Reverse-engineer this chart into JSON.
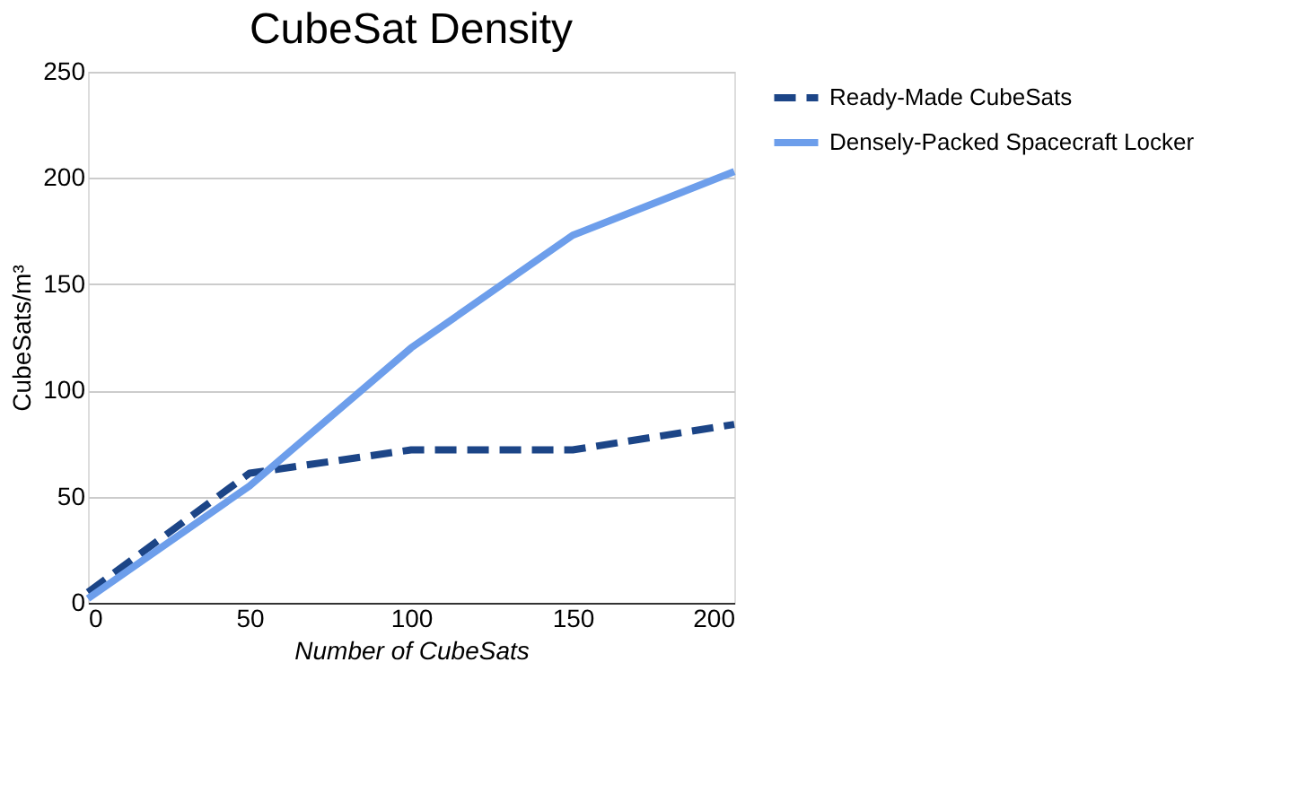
{
  "chart_data": {
    "type": "line",
    "title": "CubeSat Density",
    "xlabel": "Number of CubeSats",
    "ylabel": "CubeSats/m³",
    "x": [
      0,
      50,
      100,
      150,
      200
    ],
    "series": [
      {
        "name": "Ready-Made CubeSats",
        "color": "#1c4587",
        "line_style": "dashed",
        "values": [
          5,
          61,
          72,
          72,
          84
        ]
      },
      {
        "name": "Densely-Packed Spacecraft Locker",
        "color": "#6d9eeb",
        "line_style": "solid",
        "values": [
          2,
          55,
          120,
          173,
          203
        ]
      }
    ],
    "xlim": [
      0,
      200
    ],
    "xticks": [
      0,
      50,
      100,
      150,
      200
    ],
    "ylim": [
      0,
      250
    ],
    "yticks": [
      0,
      50,
      100,
      150,
      200,
      250
    ],
    "grid": "y",
    "legend": "right",
    "marker": "none"
  }
}
